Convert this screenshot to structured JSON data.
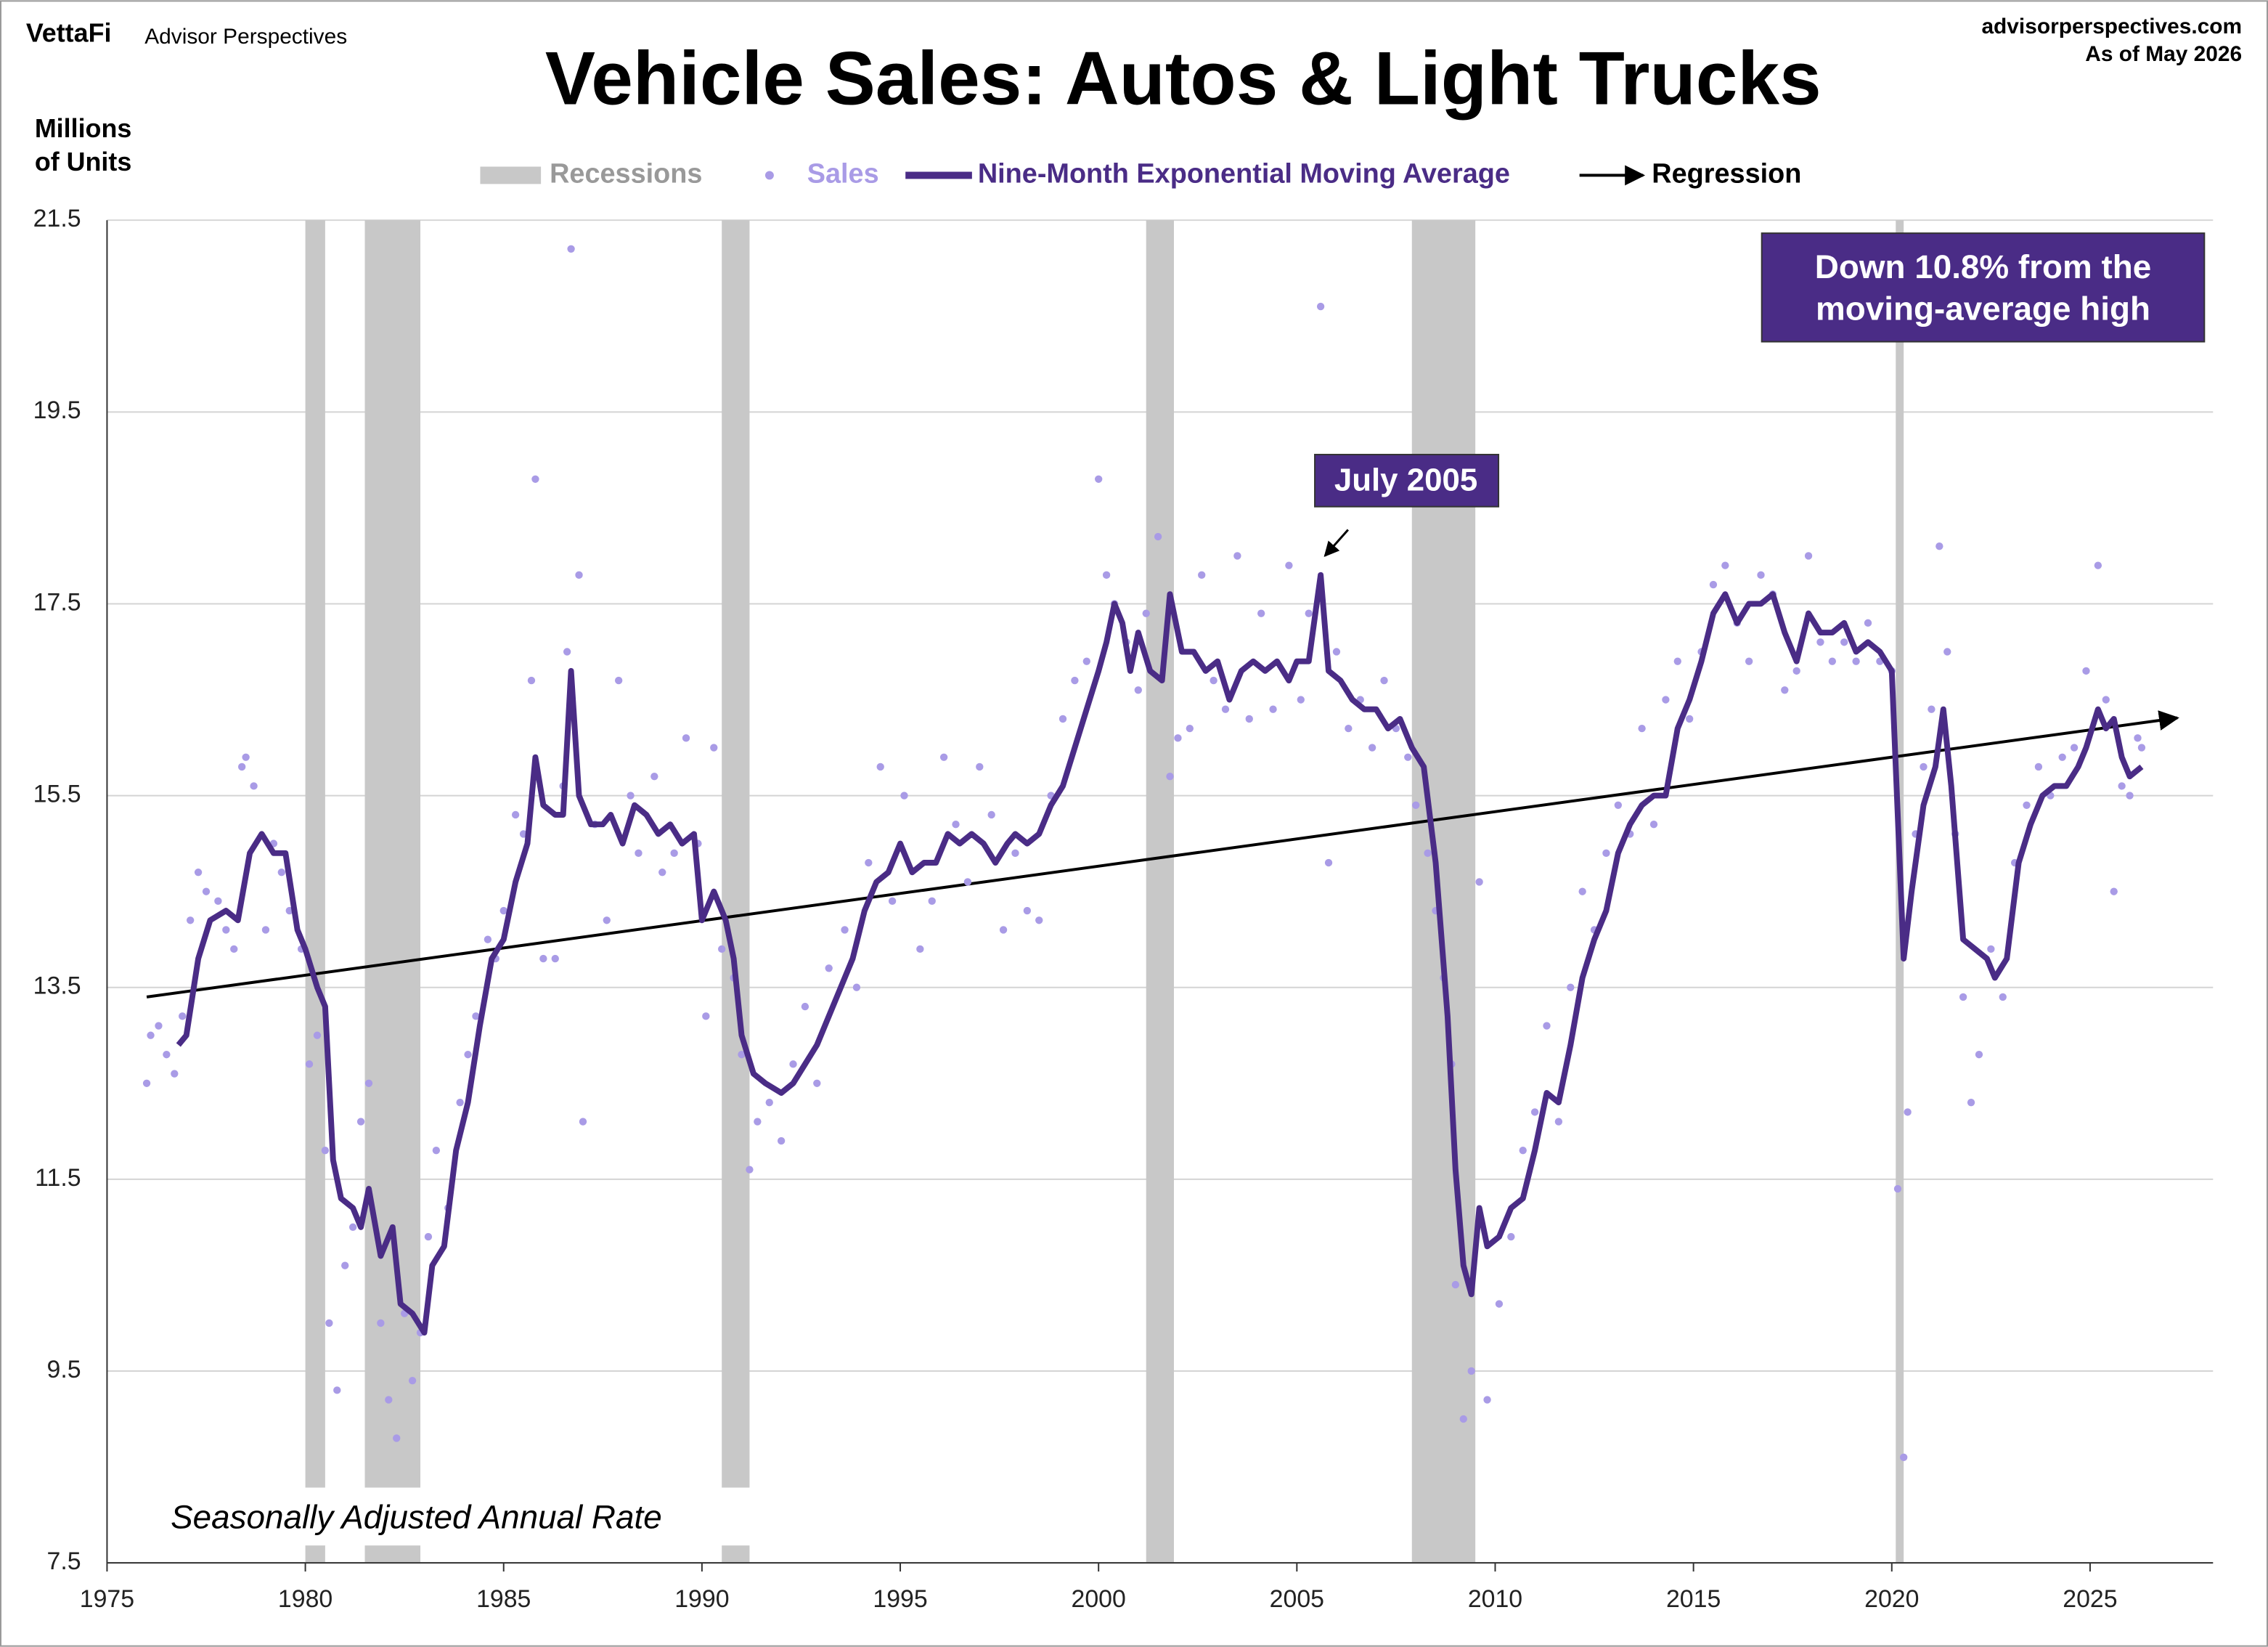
{
  "header": {
    "brand": "VettaFi",
    "publisher": "Advisor Perspectives",
    "site": "advisorperspectives.com",
    "as_of": "As of May 2026"
  },
  "chart_data": {
    "type": "line",
    "title": "Vehicle Sales: Autos & Light Trucks",
    "ylabel": [
      "Millions",
      "of Units"
    ],
    "note": "Seasonally Adjusted Annual Rate",
    "callout": "Down 10.8% from the moving-average high",
    "annotation": "July 2005",
    "xlim": [
      1975,
      2028.1
    ],
    "ylim": [
      7.5,
      21.5
    ],
    "xticks": [
      1975,
      1980,
      1985,
      1990,
      1995,
      2000,
      2005,
      2010,
      2015,
      2020,
      2025
    ],
    "yticks": [
      7.5,
      9.5,
      11.5,
      13.5,
      15.5,
      17.5,
      19.5,
      21.5
    ],
    "grid": true,
    "recessions": {
      "name": "Recessions",
      "color": "#c8c8c8",
      "ranges": [
        [
          1980.0,
          1980.5
        ],
        [
          1981.5,
          1982.9
        ],
        [
          1990.5,
          1991.2
        ],
        [
          2001.2,
          2001.9
        ],
        [
          2007.9,
          2009.5
        ],
        [
          2020.1,
          2020.3
        ]
      ]
    },
    "sales": {
      "name": "Sales",
      "color": "#a99be6",
      "x": [
        1976.0,
        1976.1,
        1976.3,
        1976.5,
        1976.7,
        1976.9,
        1977.1,
        1977.3,
        1977.5,
        1977.8,
        1978.0,
        1978.2,
        1978.4,
        1978.5,
        1978.7,
        1979.0,
        1979.2,
        1979.4,
        1979.6,
        1979.9,
        1980.1,
        1980.3,
        1980.5,
        1980.6,
        1980.8,
        1981.0,
        1981.2,
        1981.4,
        1981.6,
        1981.9,
        1982.1,
        1982.3,
        1982.5,
        1982.7,
        1982.9,
        1983.1,
        1983.3,
        1983.6,
        1983.9,
        1984.1,
        1984.3,
        1984.6,
        1984.8,
        1985.0,
        1985.3,
        1985.5,
        1985.7,
        1985.8,
        1986.0,
        1986.3,
        1986.5,
        1986.6,
        1986.7,
        1986.9,
        1987.0,
        1987.3,
        1987.6,
        1987.9,
        1988.2,
        1988.4,
        1988.8,
        1989.0,
        1989.3,
        1989.6,
        1989.9,
        1990.1,
        1990.3,
        1990.5,
        1990.8,
        1991.0,
        1991.2,
        1991.4,
        1991.7,
        1992.0,
        1992.3,
        1992.6,
        1992.9,
        1993.2,
        1993.6,
        1993.9,
        1994.2,
        1994.5,
        1994.8,
        1995.1,
        1995.5,
        1995.8,
        1996.1,
        1996.4,
        1996.7,
        1997.0,
        1997.3,
        1997.6,
        1997.9,
        1998.2,
        1998.5,
        1998.8,
        1999.1,
        1999.4,
        1999.7,
        2000.0,
        2000.2,
        2000.4,
        2000.7,
        2001.0,
        2001.2,
        2001.5,
        2001.8,
        2002.0,
        2002.3,
        2002.6,
        2002.9,
        2003.2,
        2003.5,
        2003.8,
        2004.1,
        2004.4,
        2004.8,
        2005.1,
        2005.3,
        2005.6,
        2005.8,
        2006.0,
        2006.3,
        2006.6,
        2006.9,
        2007.2,
        2007.5,
        2007.8,
        2008.0,
        2008.3,
        2008.5,
        2008.7,
        2008.9,
        2009.0,
        2009.2,
        2009.4,
        2009.6,
        2009.8,
        2010.1,
        2010.4,
        2010.7,
        2011.0,
        2011.3,
        2011.6,
        2011.9,
        2012.2,
        2012.5,
        2012.8,
        2013.1,
        2013.4,
        2013.7,
        2014.0,
        2014.3,
        2014.6,
        2014.9,
        2015.2,
        2015.5,
        2015.8,
        2016.1,
        2016.4,
        2016.7,
        2017.0,
        2017.3,
        2017.6,
        2017.9,
        2018.2,
        2018.5,
        2018.8,
        2019.1,
        2019.4,
        2019.7,
        2020.0,
        2020.15,
        2020.3,
        2020.4,
        2020.6,
        2020.8,
        2021.0,
        2021.2,
        2021.4,
        2021.6,
        2021.8,
        2022.0,
        2022.2,
        2022.5,
        2022.8,
        2023.1,
        2023.4,
        2023.7,
        2024.0,
        2024.3,
        2024.6,
        2024.9,
        2025.2,
        2025.4,
        2025.6,
        2025.8,
        2026.0,
        2026.2,
        2026.3
      ],
      "values": [
        12.5,
        13.0,
        13.1,
        12.8,
        12.6,
        13.2,
        14.2,
        14.7,
        14.5,
        14.4,
        14.1,
        13.9,
        15.8,
        15.9,
        15.6,
        14.1,
        15.0,
        14.7,
        14.3,
        13.9,
        12.7,
        13.0,
        11.8,
        10.0,
        9.3,
        10.6,
        11.0,
        12.1,
        12.5,
        10.0,
        9.2,
        8.8,
        10.1,
        9.4,
        9.9,
        10.9,
        11.8,
        11.2,
        12.3,
        12.8,
        13.2,
        14.0,
        13.8,
        14.3,
        15.3,
        15.1,
        16.7,
        18.8,
        13.8,
        13.8,
        15.6,
        17.0,
        21.2,
        17.8,
        12.1,
        15.2,
        14.2,
        16.7,
        15.5,
        14.9,
        15.7,
        14.7,
        14.9,
        16.1,
        15.0,
        13.2,
        16.0,
        13.9,
        13.6,
        12.8,
        11.6,
        12.1,
        12.3,
        11.9,
        12.7,
        13.3,
        12.5,
        13.7,
        14.1,
        13.5,
        14.8,
        15.8,
        14.4,
        15.5,
        13.9,
        14.4,
        15.9,
        15.2,
        14.6,
        15.8,
        15.3,
        14.1,
        14.9,
        14.3,
        14.2,
        15.5,
        16.3,
        16.7,
        16.9,
        18.8,
        17.8,
        17.5,
        17.1,
        16.6,
        17.4,
        18.2,
        15.7,
        16.1,
        16.2,
        17.8,
        16.7,
        16.4,
        18.0,
        16.3,
        17.4,
        16.4,
        17.9,
        16.5,
        17.4,
        20.6,
        14.8,
        17.0,
        16.2,
        16.5,
        16.0,
        16.7,
        16.2,
        15.9,
        15.4,
        14.9,
        14.3,
        13.6,
        12.7,
        10.4,
        9.0,
        9.5,
        14.6,
        9.2,
        10.2,
        10.9,
        11.8,
        12.2,
        13.1,
        12.1,
        13.5,
        14.5,
        14.1,
        14.9,
        15.4,
        15.1,
        16.2,
        15.2,
        16.5,
        16.9,
        16.3,
        17.0,
        17.7,
        17.9,
        17.3,
        16.9,
        17.8,
        17.6,
        16.6,
        16.8,
        18.0,
        17.1,
        16.9,
        17.1,
        16.9,
        17.3,
        16.9,
        16.8,
        11.4,
        8.6,
        12.2,
        15.1,
        15.8,
        16.4,
        18.1,
        17.0,
        15.1,
        13.4,
        12.3,
        12.8,
        13.9,
        13.4,
        14.8,
        15.4,
        15.8,
        15.5,
        15.9,
        16.0,
        16.8,
        17.9,
        16.5,
        14.5,
        15.6,
        15.5,
        16.1,
        16.0
      ]
    },
    "series": [
      {
        "name": "Nine-Month Exponential Moving Average",
        "color": "#4a2c86",
        "x": [
          1976.8,
          1977.0,
          1977.3,
          1977.6,
          1978.0,
          1978.3,
          1978.6,
          1978.9,
          1979.2,
          1979.5,
          1979.8,
          1980.0,
          1980.3,
          1980.5,
          1980.7,
          1980.9,
          1981.2,
          1981.4,
          1981.6,
          1981.9,
          1982.2,
          1982.4,
          1982.7,
          1983.0,
          1983.2,
          1983.5,
          1983.8,
          1984.1,
          1984.4,
          1984.7,
          1985.0,
          1985.3,
          1985.6,
          1985.8,
          1986.0,
          1986.3,
          1986.5,
          1986.7,
          1986.9,
          1987.2,
          1987.5,
          1987.7,
          1988.0,
          1988.3,
          1988.6,
          1988.9,
          1989.2,
          1989.5,
          1989.8,
          1990.0,
          1990.3,
          1990.6,
          1990.8,
          1991.0,
          1991.3,
          1991.6,
          1992.0,
          1992.3,
          1992.6,
          1992.9,
          1993.2,
          1993.5,
          1993.8,
          1994.1,
          1994.4,
          1994.7,
          1995.0,
          1995.3,
          1995.6,
          1995.9,
          1996.2,
          1996.5,
          1996.8,
          1997.1,
          1997.4,
          1997.7,
          1997.9,
          1998.2,
          1998.5,
          1998.8,
          1999.1,
          1999.4,
          1999.7,
          2000.0,
          2000.2,
          2000.4,
          2000.6,
          2000.8,
          2001.0,
          2001.3,
          2001.6,
          2001.8,
          2002.1,
          2002.4,
          2002.7,
          2003.0,
          2003.3,
          2003.6,
          2003.9,
          2004.2,
          2004.5,
          2004.8,
          2005.0,
          2005.3,
          2005.6,
          2005.8,
          2006.1,
          2006.4,
          2006.7,
          2007.0,
          2007.3,
          2007.6,
          2007.9,
          2008.2,
          2008.5,
          2008.8,
          2009.0,
          2009.2,
          2009.4,
          2009.6,
          2009.8,
          2010.1,
          2010.4,
          2010.7,
          2011.0,
          2011.3,
          2011.6,
          2011.9,
          2012.2,
          2012.5,
          2012.8,
          2013.1,
          2013.4,
          2013.7,
          2014.0,
          2014.3,
          2014.6,
          2014.9,
          2015.2,
          2015.5,
          2015.8,
          2016.1,
          2016.4,
          2016.7,
          2017.0,
          2017.3,
          2017.6,
          2017.9,
          2018.2,
          2018.5,
          2018.8,
          2019.1,
          2019.4,
          2019.7,
          2020.0,
          2020.2,
          2020.3,
          2020.5,
          2020.8,
          2021.1,
          2021.3,
          2021.5,
          2021.8,
          2022.1,
          2022.4,
          2022.6,
          2022.9,
          2023.2,
          2023.5,
          2023.8,
          2024.1,
          2024.4,
          2024.7,
          2024.9,
          2025.2,
          2025.4,
          2025.6,
          2025.8,
          2026.0,
          2026.3
        ],
        "values": [
          12.9,
          13.0,
          13.8,
          14.2,
          14.3,
          14.2,
          14.9,
          15.1,
          14.9,
          14.9,
          14.1,
          13.9,
          13.5,
          13.3,
          11.7,
          11.3,
          11.2,
          11.0,
          11.4,
          10.7,
          11.0,
          10.2,
          10.1,
          9.9,
          10.6,
          10.8,
          11.8,
          12.3,
          13.1,
          13.8,
          14.0,
          14.6,
          15.0,
          15.9,
          15.4,
          15.3,
          15.3,
          16.8,
          15.5,
          15.2,
          15.2,
          15.3,
          15.0,
          15.4,
          15.3,
          15.1,
          15.2,
          15.0,
          15.1,
          14.2,
          14.5,
          14.2,
          13.8,
          13.0,
          12.6,
          12.5,
          12.4,
          12.5,
          12.7,
          12.9,
          13.2,
          13.5,
          13.8,
          14.3,
          14.6,
          14.7,
          15.0,
          14.7,
          14.8,
          14.8,
          15.1,
          15.0,
          15.1,
          15.0,
          14.8,
          15.0,
          15.1,
          15.0,
          15.1,
          15.4,
          15.6,
          16.0,
          16.4,
          16.8,
          17.1,
          17.5,
          17.3,
          16.8,
          17.2,
          16.8,
          16.7,
          17.6,
          17.0,
          17.0,
          16.8,
          16.9,
          16.5,
          16.8,
          16.9,
          16.8,
          16.9,
          16.7,
          16.9,
          16.9,
          17.8,
          16.8,
          16.7,
          16.5,
          16.4,
          16.4,
          16.2,
          16.3,
          16.0,
          15.8,
          14.8,
          13.2,
          11.6,
          10.6,
          10.3,
          11.2,
          10.8,
          10.9,
          11.2,
          11.3,
          11.8,
          12.4,
          12.3,
          12.9,
          13.6,
          14.0,
          14.3,
          14.9,
          15.2,
          15.4,
          15.5,
          15.5,
          16.2,
          16.5,
          16.9,
          17.4,
          17.6,
          17.3,
          17.5,
          17.5,
          17.6,
          17.2,
          16.9,
          17.4,
          17.2,
          17.2,
          17.3,
          17.0,
          17.1,
          17.0,
          16.8,
          14.8,
          13.8,
          14.5,
          15.4,
          15.8,
          16.4,
          15.6,
          14.0,
          13.9,
          13.8,
          13.6,
          13.8,
          14.8,
          15.2,
          15.5,
          15.6,
          15.6,
          15.8,
          16.0,
          16.4,
          16.2,
          16.3,
          15.9,
          15.7,
          15.8
        ]
      }
    ],
    "regression": {
      "name": "Regression",
      "color": "#000000",
      "x": [
        1976.0,
        2027.2
      ],
      "values": [
        13.4,
        16.31
      ]
    }
  }
}
